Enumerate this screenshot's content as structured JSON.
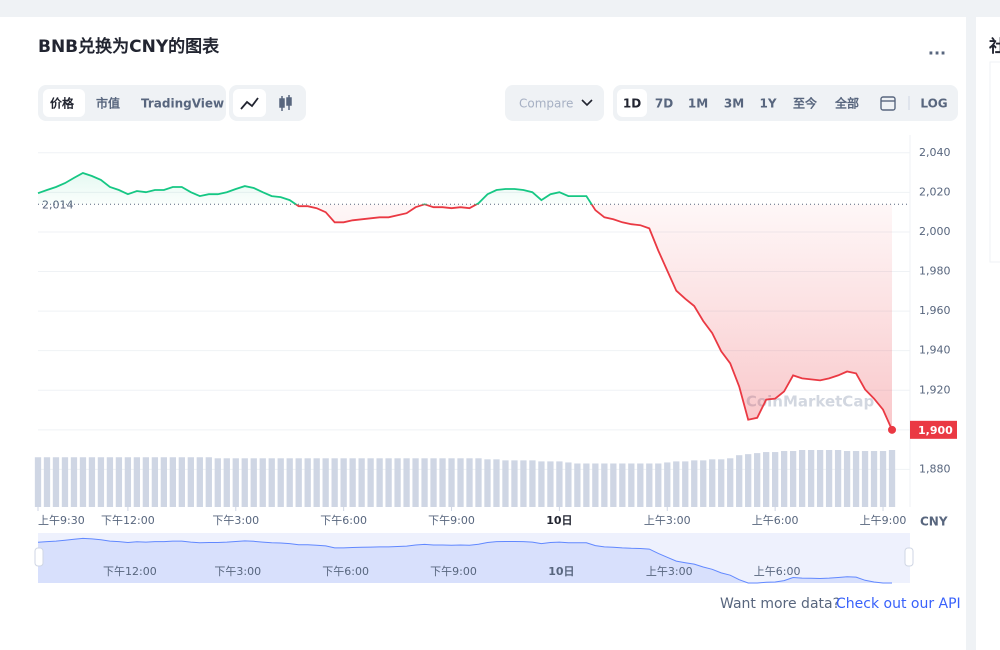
{
  "header": {
    "title": "BNB兑换为CNY的图表",
    "menu": "..."
  },
  "tabs": [
    "价格",
    "市值",
    "TradingView"
  ],
  "compare": "Compare",
  "ranges": [
    "1D",
    "7D",
    "1M",
    "3M",
    "1Y",
    "至今",
    "全部"
  ],
  "log": "LOG",
  "side_title": "社",
  "footer": {
    "text": "Want more data?",
    "link": "Check out our API"
  },
  "chart_data": {
    "type": "line",
    "x": [
      9.5,
      9.75,
      10,
      10.25,
      10.5,
      10.75,
      11,
      11.25,
      11.5,
      11.75,
      12,
      12.25,
      12.5,
      12.75,
      13,
      13.25,
      13.5,
      13.75,
      14,
      14.25,
      14.5,
      14.75,
      15,
      15.25,
      15.5,
      15.75,
      16,
      16.25,
      16.5,
      16.75,
      17,
      17.25,
      17.5,
      17.75,
      18,
      18.25,
      18.5,
      18.75,
      19,
      19.25,
      19.5,
      19.75,
      20,
      20.25,
      20.5,
      20.75,
      21,
      21.25,
      21.5,
      21.75,
      22,
      22.25,
      22.5,
      22.75,
      23,
      23.25,
      23.5,
      23.75,
      24,
      24.25,
      24.5,
      24.75,
      25,
      25.25,
      25.5,
      25.75,
      26,
      26.25,
      26.5,
      26.75,
      27,
      27.25,
      27.5,
      27.75,
      28,
      28.25,
      28.5,
      28.75,
      29,
      29.25,
      29.5,
      29.75,
      30,
      30.25,
      30.5,
      30.75,
      31,
      31.25,
      31.5,
      31.75,
      32,
      32.25,
      32.5,
      32.75,
      33,
      33.25
    ],
    "values": [
      2019.6,
      2021.2,
      2022.7,
      2024.7,
      2027.3,
      2029.8,
      2028.3,
      2026.3,
      2022.7,
      2021.2,
      2019.1,
      2020.7,
      2020.1,
      2021.2,
      2021.2,
      2022.7,
      2022.7,
      2020.1,
      2018.1,
      2019.1,
      2019.1,
      2020.1,
      2021.7,
      2023.2,
      2022.2,
      2020.1,
      2018.1,
      2017.6,
      2016.1,
      2013.0,
      2013.0,
      2012.0,
      2010.0,
      2004.9,
      2004.9,
      2005.9,
      2006.4,
      2006.9,
      2007.4,
      2007.4,
      2008.4,
      2009.5,
      2012.5,
      2014.0,
      2012.5,
      2012.5,
      2012.0,
      2012.5,
      2012.0,
      2014.5,
      2019.1,
      2021.2,
      2021.7,
      2021.7,
      2021.2,
      2020.1,
      2016.1,
      2019.1,
      2020.1,
      2018.1,
      2018.1,
      2018.1,
      2011.0,
      2007.4,
      2006.4,
      2004.9,
      2003.9,
      2003.4,
      2001.8,
      1990.6,
      1980.4,
      1970.3,
      1966.2,
      1962.6,
      1955.0,
      1948.9,
      1939.7,
      1933.6,
      1921.9,
      1905.1,
      1906.1,
      1915.3,
      1915.8,
      1919.4,
      1927.5,
      1926.0,
      1925.5,
      1925.0,
      1926.0,
      1927.5,
      1929.5,
      1928.5,
      1920.4,
      1915.8,
      1910.2,
      1900
    ],
    "last_label": "1,900",
    "up_color": "#16c784",
    "down_color": "#ea3943",
    "reference": {
      "value": 2014,
      "label": "2,014"
    },
    "volume": [
      48,
      48,
      48,
      48,
      48,
      48,
      48,
      48,
      48,
      48,
      48,
      48,
      48,
      48,
      48,
      48,
      48,
      48,
      48,
      48,
      47,
      47,
      47,
      47,
      47,
      47,
      47,
      47,
      47,
      47,
      47,
      47,
      47,
      47,
      47,
      47,
      47,
      47,
      47,
      47,
      47,
      47,
      47,
      47,
      47,
      47,
      47,
      47,
      47,
      47,
      46,
      46,
      45,
      45,
      45,
      45,
      44,
      44,
      44,
      43,
      42,
      42,
      42,
      42,
      42,
      42,
      42,
      42,
      42,
      42,
      43,
      44,
      44,
      45,
      45,
      46,
      46,
      47,
      50,
      51,
      52,
      53,
      53,
      54,
      54,
      55,
      55,
      55,
      55,
      55,
      54,
      54,
      54,
      54,
      54,
      55
    ],
    "volume_color": "#cfd6e4",
    "ylim": [
      1861,
      2049
    ],
    "yticks": [
      {
        "value": 1880,
        "label": "1,880"
      },
      {
        "value": 1900,
        "label": "1,900"
      },
      {
        "value": 1920,
        "label": "1,920"
      },
      {
        "value": 1940,
        "label": "1,940"
      },
      {
        "value": 1960,
        "label": "1,960"
      },
      {
        "value": 1980,
        "label": "1,980"
      },
      {
        "value": 2000,
        "label": "2,000"
      },
      {
        "value": 2020,
        "label": "2,020"
      },
      {
        "value": 2040,
        "label": "2,040"
      }
    ],
    "xlim": [
      9.5,
      33.75
    ],
    "xticks": [
      {
        "value": 9.5,
        "label": "上午9:30"
      },
      {
        "value": 12,
        "label": "下午12:00"
      },
      {
        "value": 15,
        "label": "下午3:00"
      },
      {
        "value": 18,
        "label": "下午6:00"
      },
      {
        "value": 21,
        "label": "下午9:00"
      },
      {
        "value": 24,
        "label": "10日"
      },
      {
        "value": 27,
        "label": "上午3:00"
      },
      {
        "value": 30,
        "label": "上午6:00"
      },
      {
        "value": 33,
        "label": "上午9:00"
      }
    ],
    "axis_unit": "CNY",
    "watermark": "CoinMarketCap",
    "grid": true
  }
}
